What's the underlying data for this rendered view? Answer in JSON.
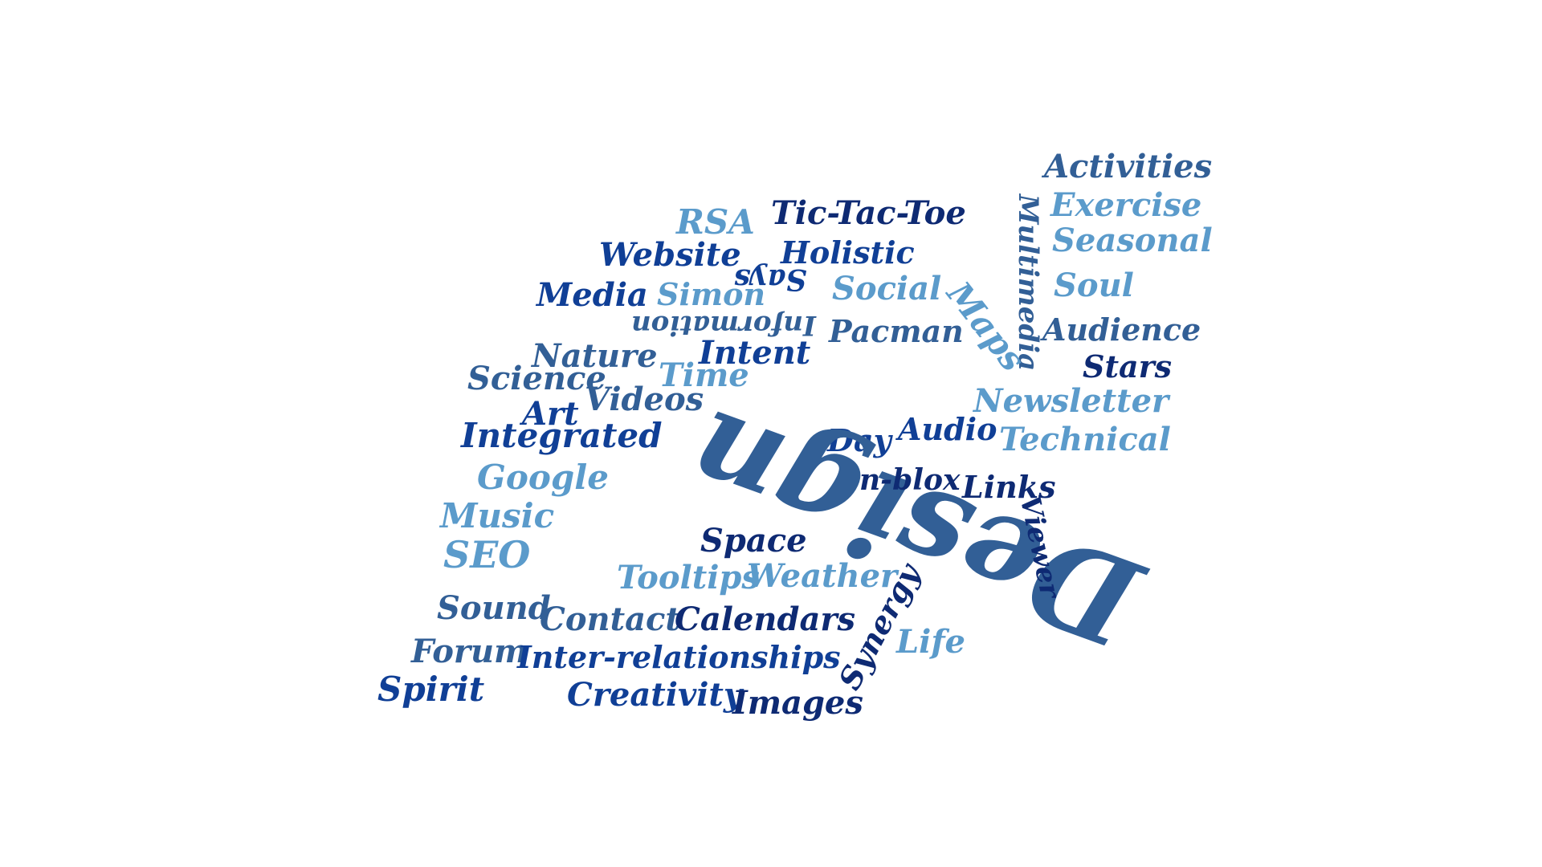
{
  "colors": {
    "navy": "#0e2a73",
    "blue": "#103f96",
    "steel": "#325f96",
    "sky": "#5b9bcb",
    "background": "#ffffff"
  },
  "words": {
    "activities": "Activities",
    "exercise": "Exercise",
    "seasonal": "Seasonal",
    "soul": "Soul",
    "audience": "Audience",
    "stars": "Stars",
    "multimedia": "Multimedia",
    "rsa": "RSA",
    "tic_tac_toe": "Tic-Tac-Toe",
    "holistic": "Holistic",
    "website": "Website",
    "says": "Says",
    "media": "Media",
    "simon": "Simon",
    "social": "Social",
    "information": "Information",
    "maps": "Maps",
    "pacman": "Pacman",
    "intent": "Intent",
    "nature": "Nature",
    "time": "Time",
    "science": "Science",
    "videos": "Videos",
    "art": "Art",
    "integrated": "Integrated",
    "newsletter": "Newsletter",
    "audio": "Audio",
    "day": "Day",
    "technical": "Technical",
    "google": "Google",
    "design": "Design",
    "n_blox": "n-blox",
    "links": "Links",
    "music": "Music",
    "viewer": "Viewer",
    "space": "Space",
    "seo": "SEO",
    "tooltips": "Tooltips",
    "weather": "Weather",
    "sound": "Sound",
    "contact": "Contact",
    "calendars": "Calendars",
    "synergy": "Synergy",
    "life": "Life",
    "forum": "Forum",
    "inter_relationships": "Inter-relationships",
    "spirit": "Spirit",
    "creativity": "Creativity",
    "images": "Images"
  }
}
